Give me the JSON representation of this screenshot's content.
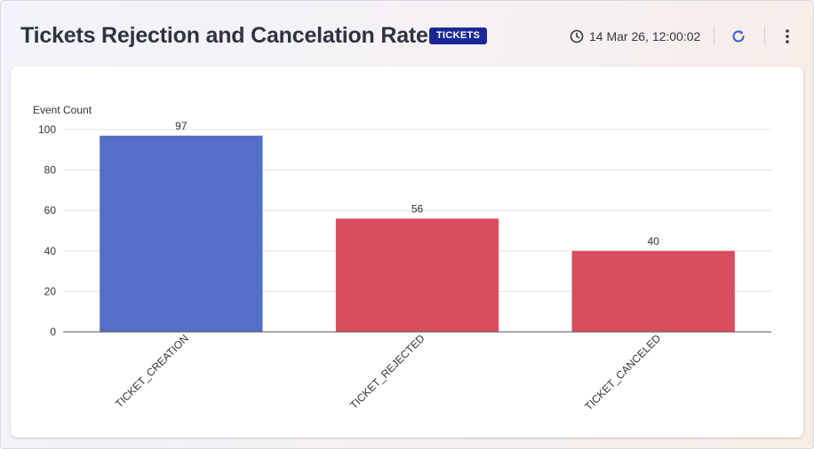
{
  "header": {
    "title": "Tickets Rejection and Cancelation Rate",
    "badge": "TICKETS",
    "timestamp": "14 Mar 26, 12:00:02",
    "refresh_icon": "refresh-icon",
    "menu_icon": "more-vertical-icon",
    "clock_icon": "clock-icon"
  },
  "colors": {
    "badge_bg": "#1c2796",
    "refresh": "#3a5bd9"
  },
  "chart_data": {
    "type": "bar",
    "ylabel": "Event Count",
    "xlabel": "",
    "ylim": [
      0,
      100
    ],
    "yticks": [
      0,
      20,
      40,
      60,
      80,
      100
    ],
    "grid": true,
    "categories": [
      "TICKET_CREATION",
      "TICKET_REJECTED",
      "TICKET_CANCELED"
    ],
    "values": [
      97,
      56,
      40
    ],
    "colors": [
      "#5470c6",
      "#d94e5d",
      "#d94e5d"
    ],
    "data_labels": [
      "97",
      "56",
      "40"
    ]
  }
}
